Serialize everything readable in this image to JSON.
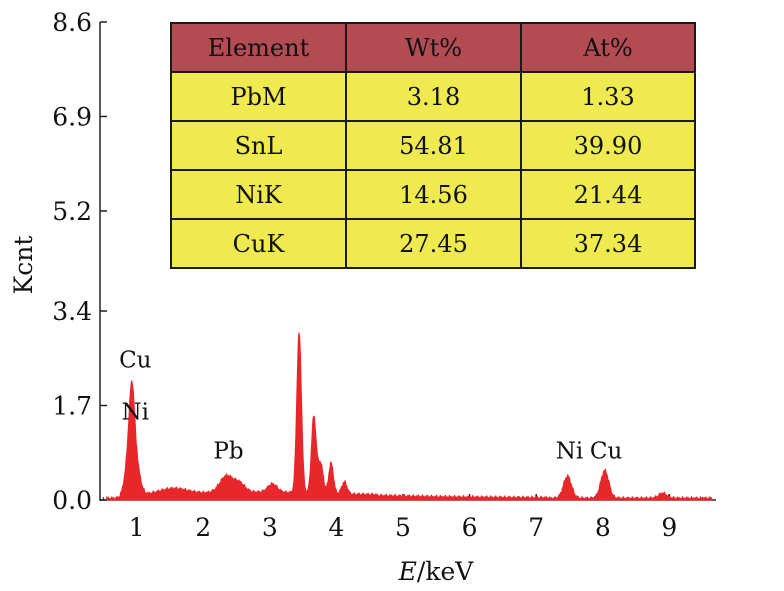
{
  "chart_data": {
    "type": "line",
    "xlabel": "E/keV",
    "xlabel_italic_part": "E",
    "xlabel_rest": "/keV",
    "ylabel": "Kcnt",
    "xlim": [
      0.45,
      9.7
    ],
    "ylim": [
      0,
      8.6
    ],
    "x_ticks": [
      1,
      2,
      3,
      4,
      5,
      6,
      7,
      8,
      9
    ],
    "y_ticks": [
      "0.0",
      "1.7",
      "3.4",
      "5.2",
      "6.9",
      "8.6"
    ],
    "y_tick_values": [
      0,
      1.7,
      3.4,
      5.2,
      6.9,
      8.6
    ],
    "series_color": "#e8272a",
    "spectrum": {
      "baseline": 0.03,
      "peaks": [
        {
          "x": 0.93,
          "height": 1.92,
          "width": 0.045
        },
        {
          "x": 0.85,
          "height": 0.4,
          "width": 0.05
        },
        {
          "x": 1.02,
          "height": 0.35,
          "width": 0.05
        },
        {
          "x": 1.55,
          "height": 0.1,
          "width": 0.2
        },
        {
          "x": 2.35,
          "height": 0.3,
          "width": 0.1
        },
        {
          "x": 2.55,
          "height": 0.15,
          "width": 0.08
        },
        {
          "x": 3.04,
          "height": 0.15,
          "width": 0.07
        },
        {
          "x": 3.44,
          "height": 2.87,
          "width": 0.035
        },
        {
          "x": 3.66,
          "height": 1.37,
          "width": 0.035
        },
        {
          "x": 3.76,
          "height": 0.55,
          "width": 0.04
        },
        {
          "x": 3.92,
          "height": 0.55,
          "width": 0.035
        },
        {
          "x": 4.12,
          "height": 0.22,
          "width": 0.04
        },
        {
          "x": 7.47,
          "height": 0.4,
          "width": 0.06
        },
        {
          "x": 8.03,
          "height": 0.5,
          "width": 0.06
        },
        {
          "x": 8.9,
          "height": 0.09,
          "width": 0.06
        }
      ]
    },
    "annotations": [
      {
        "text": "Cu",
        "x": 0.98,
        "y": 2.38
      },
      {
        "text": "Ni",
        "x": 0.98,
        "y": 1.45
      },
      {
        "text": "Pb",
        "x": 2.38,
        "y": 0.75
      },
      {
        "text": "Ni",
        "x": 7.5,
        "y": 0.75
      },
      {
        "text": "Cu",
        "x": 8.05,
        "y": 0.75
      }
    ],
    "table": {
      "headers": [
        "Element",
        "Wt%",
        "At%"
      ],
      "rows": [
        [
          "PbM",
          "3.18",
          "1.33"
        ],
        [
          "SnL",
          "54.81",
          "39.90"
        ],
        [
          "NiK",
          "14.56",
          "21.44"
        ],
        [
          "CuK",
          "27.45",
          "37.34"
        ]
      ]
    }
  },
  "colors": {
    "table_header": "#b24b52",
    "table_cell": "#eeea50",
    "spectrum": "#e8272a"
  }
}
